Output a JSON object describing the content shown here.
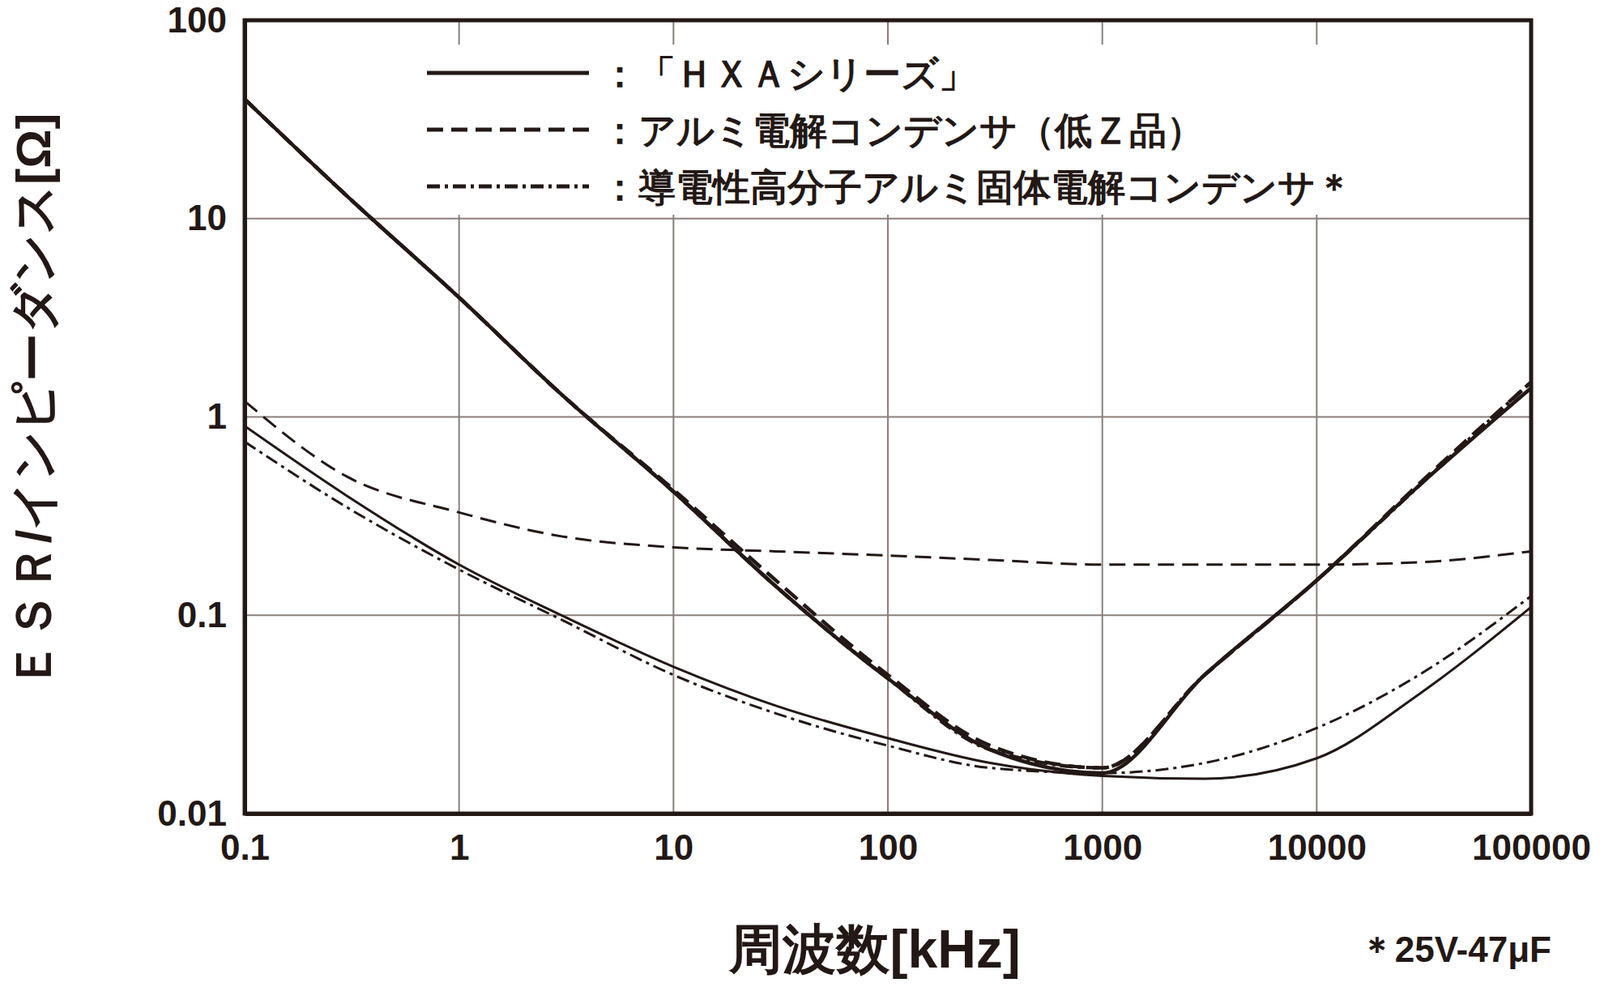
{
  "chart_data": {
    "type": "line",
    "x_label": "周波数[kHz]",
    "y_label": "ＥＳＲ/インピーダンス[Ω]",
    "annotation": "＊25V-47μF",
    "log": true,
    "grid": true,
    "legend": "top-left",
    "xlim": [
      0.1,
      100000
    ],
    "ylim": [
      0.01,
      100
    ],
    "xticks": [
      0.1,
      1,
      10,
      100,
      1000,
      10000,
      100000
    ],
    "yticks": [
      0.01,
      0.1,
      1,
      10,
      100
    ],
    "x": [
      0.1,
      0.3,
      1,
      3,
      10,
      30,
      100,
      300,
      1000,
      3000,
      10000,
      30000,
      100000
    ],
    "series": [
      {
        "name": "：「ＨＸＡシリーズ」",
        "color": "#231815",
        "line_style": "solid",
        "values": [
          40,
          13,
          4,
          1.3,
          0.42,
          0.14,
          0.048,
          0.021,
          0.016,
          0.05,
          0.15,
          0.45,
          1.4
        ],
        "esr": [
          0.9,
          0.4,
          0.18,
          0.1,
          0.055,
          0.035,
          0.024,
          0.018,
          0.0155,
          0.015,
          0.019,
          0.04,
          0.11
        ]
      },
      {
        "name": "：アルミ電解コンデンサ（低Ｚ品）",
        "color": "#231815",
        "line_style": "dashed",
        "values": [
          40,
          13,
          4,
          1.3,
          0.43,
          0.15,
          0.05,
          0.022,
          0.017,
          0.05,
          0.15,
          0.46,
          1.5
        ],
        "esr": [
          1.2,
          0.5,
          0.33,
          0.25,
          0.22,
          0.21,
          0.2,
          0.19,
          0.18,
          0.18,
          0.18,
          0.185,
          0.21
        ]
      },
      {
        "name": "：導電性高分子アルミ固体電解コンデンサ＊",
        "color": "#231815",
        "line_style": "dashdot",
        "values": [
          40,
          13,
          4,
          1.3,
          0.42,
          0.14,
          0.048,
          0.021,
          0.017,
          0.05,
          0.15,
          0.45,
          1.5
        ],
        "esr": [
          0.75,
          0.35,
          0.17,
          0.095,
          0.05,
          0.032,
          0.022,
          0.017,
          0.016,
          0.018,
          0.027,
          0.05,
          0.125
        ]
      }
    ]
  }
}
